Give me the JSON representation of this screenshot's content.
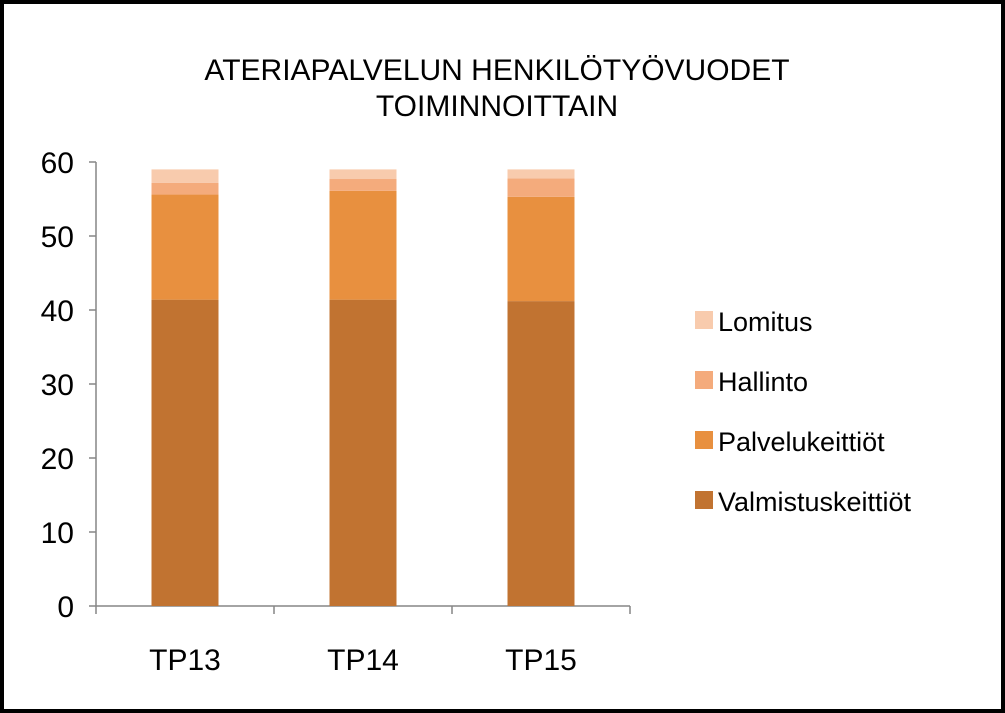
{
  "chart_data": {
    "type": "bar",
    "stacked": true,
    "title": [
      "ATERIAPALVELUN  HENKILÖTYÖVUODET",
      "TOIMINNOITTAIN"
    ],
    "categories": [
      "TP13",
      "TP14",
      "TP15"
    ],
    "series": [
      {
        "name": "Valmistuskeittiöt",
        "color": "#c17331",
        "values": [
          41.4,
          41.4,
          41.2
        ]
      },
      {
        "name": "Palvelukeittiöt",
        "color": "#e8903f",
        "values": [
          14.2,
          14.7,
          14.1
        ]
      },
      {
        "name": "Hallinto",
        "color": "#f4ab7c",
        "values": [
          1.6,
          1.6,
          2.5
        ]
      },
      {
        "name": "Lomitus",
        "color": "#f8cbad",
        "values": [
          1.8,
          1.3,
          1.2
        ]
      }
    ],
    "ylim": [
      0,
      60
    ],
    "yticks": [
      0,
      10,
      20,
      30,
      40,
      50,
      60
    ],
    "legend_position": "right",
    "grid": false,
    "xlabel": "",
    "ylabel": ""
  }
}
